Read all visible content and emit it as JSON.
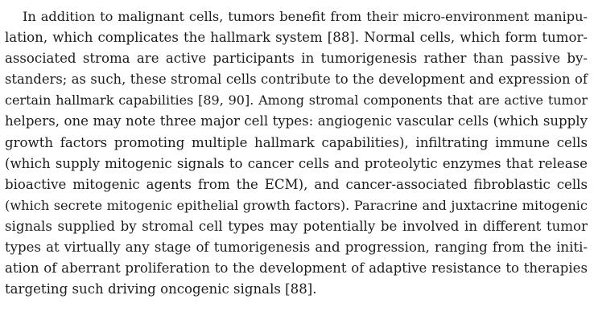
{
  "paragraph": {
    "lines": [
      "In addition to malignant cells, tumors benefit from their micro-environment manipu-",
      "lation, which complicates the hallmark system [88]. Normal cells, which form tumor-",
      "associated stroma are active participants in tumorigenesis rather than passive by-",
      "standers; as such, these stromal cells contribute to the development and expression of",
      "certain hallmark capabilities [89, 90]. Among stromal components that are active tumor",
      "helpers, one may note three major cell types: angiogenic vascular cells (which supply",
      "growth factors promoting multiple hallmark capabilities), infiltrating immune cells",
      "(which supply mitogenic signals to cancer cells and proteolytic enzymes that release",
      "bioactive mitogenic agents from the ECM), and cancer-associated fibroblastic cells",
      "(which secrete mitogenic epithelial growth factors). Paracrine and juxtacrine mitogenic",
      "signals supplied by stromal cell types may potentially be involved in different tumor",
      "types at virtually any stage of tumorigenesis and progression, ranging from the initi-",
      "ation of aberrant proliferation to the development of adaptive resistance to therapies",
      "targeting such driving oncogenic signals [88]."
    ]
  }
}
